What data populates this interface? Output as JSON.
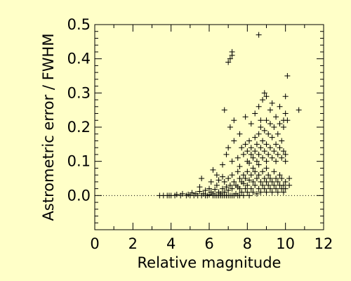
{
  "chart_data": {
    "type": "scatter",
    "title": "",
    "xlabel": "Relative magnitude",
    "ylabel": "Astrometric error / FWHM",
    "xlim": [
      0,
      12
    ],
    "ylim": [
      -0.1,
      0.5
    ],
    "xticks": [
      "0",
      "2",
      "4",
      "6",
      "8",
      "10",
      "12"
    ],
    "yticks": [
      "0.0",
      "0.1",
      "0.2",
      "0.3",
      "0.4",
      "0.5"
    ],
    "reference_line": {
      "y": 0.0,
      "style": "dotted"
    },
    "marker": "plus",
    "grid": false,
    "points": [
      [
        3.4,
        0.0
      ],
      [
        3.6,
        0.0
      ],
      [
        3.8,
        0.0
      ],
      [
        3.9,
        0.0
      ],
      [
        4.0,
        0.0
      ],
      [
        4.2,
        0.0
      ],
      [
        4.3,
        0.003
      ],
      [
        4.5,
        0.0
      ],
      [
        4.6,
        0.005
      ],
      [
        4.8,
        0.0
      ],
      [
        4.9,
        0.003
      ],
      [
        5.0,
        0.0
      ],
      [
        5.1,
        0.008
      ],
      [
        5.2,
        0.0
      ],
      [
        5.3,
        0.005
      ],
      [
        5.4,
        0.0
      ],
      [
        5.5,
        0.012
      ],
      [
        5.5,
        0.025
      ],
      [
        5.6,
        0.0
      ],
      [
        5.6,
        0.05
      ],
      [
        5.7,
        0.005
      ],
      [
        5.8,
        0.0
      ],
      [
        5.8,
        0.015
      ],
      [
        5.9,
        0.0
      ],
      [
        6.0,
        0.002
      ],
      [
        6.0,
        0.02
      ],
      [
        6.1,
        0.01
      ],
      [
        6.1,
        0.04
      ],
      [
        6.2,
        0.0
      ],
      [
        6.2,
        0.005
      ],
      [
        6.3,
        0.0
      ],
      [
        6.3,
        0.018
      ],
      [
        6.4,
        0.0
      ],
      [
        6.4,
        0.03
      ],
      [
        6.4,
        0.06
      ],
      [
        6.5,
        0.0
      ],
      [
        6.5,
        0.01
      ],
      [
        6.5,
        0.045
      ],
      [
        6.6,
        0.0
      ],
      [
        6.6,
        0.005
      ],
      [
        6.7,
        0.0
      ],
      [
        6.7,
        0.02
      ],
      [
        6.7,
        0.055
      ],
      [
        6.8,
        0.0
      ],
      [
        6.8,
        0.01
      ],
      [
        6.8,
        0.04
      ],
      [
        6.9,
        0.0
      ],
      [
        6.9,
        0.025
      ],
      [
        7.0,
        0.0
      ],
      [
        7.0,
        0.015
      ],
      [
        7.0,
        0.05
      ],
      [
        7.1,
        0.0
      ],
      [
        7.1,
        0.03
      ],
      [
        7.2,
        0.0
      ],
      [
        7.2,
        0.02
      ],
      [
        7.2,
        0.06
      ],
      [
        7.3,
        0.0
      ],
      [
        7.3,
        0.04
      ],
      [
        7.4,
        0.005
      ],
      [
        7.4,
        0.03
      ],
      [
        7.5,
        0.0
      ],
      [
        7.5,
        0.025
      ],
      [
        7.5,
        0.07
      ],
      [
        7.6,
        0.0
      ],
      [
        7.6,
        0.02
      ],
      [
        7.6,
        0.05
      ],
      [
        7.7,
        0.01
      ],
      [
        7.7,
        0.04
      ],
      [
        7.8,
        0.0
      ],
      [
        7.8,
        0.035
      ],
      [
        7.8,
        0.06
      ],
      [
        7.9,
        0.02
      ],
      [
        7.9,
        0.05
      ],
      [
        8.0,
        0.01
      ],
      [
        8.0,
        0.03
      ],
      [
        8.0,
        0.07
      ],
      [
        8.1,
        0.0
      ],
      [
        8.1,
        0.045
      ],
      [
        8.2,
        0.02
      ],
      [
        8.2,
        0.06
      ],
      [
        8.3,
        0.01
      ],
      [
        8.3,
        0.04
      ],
      [
        8.3,
        0.08
      ],
      [
        8.4,
        0.03
      ],
      [
        8.4,
        0.07
      ],
      [
        8.5,
        0.005
      ],
      [
        8.5,
        0.05
      ],
      [
        8.6,
        0.02
      ],
      [
        8.6,
        0.06
      ],
      [
        8.6,
        0.09
      ],
      [
        8.7,
        0.01
      ],
      [
        8.7,
        0.04
      ],
      [
        8.8,
        0.03
      ],
      [
        8.8,
        0.07
      ],
      [
        8.9,
        0.02
      ],
      [
        8.9,
        0.05
      ],
      [
        9.0,
        0.01
      ],
      [
        9.0,
        0.04
      ],
      [
        9.0,
        0.08
      ],
      [
        9.1,
        0.03
      ],
      [
        9.1,
        0.06
      ],
      [
        9.2,
        0.02
      ],
      [
        9.2,
        0.05
      ],
      [
        9.3,
        0.01
      ],
      [
        9.3,
        0.04
      ],
      [
        9.4,
        0.03
      ],
      [
        9.4,
        0.07
      ],
      [
        9.5,
        0.02
      ],
      [
        9.5,
        0.05
      ],
      [
        9.6,
        0.01
      ],
      [
        9.6,
        0.04
      ],
      [
        9.7,
        0.03
      ],
      [
        9.7,
        0.06
      ],
      [
        9.8,
        0.02
      ],
      [
        9.8,
        0.05
      ],
      [
        9.9,
        0.01
      ],
      [
        9.9,
        0.03
      ],
      [
        10.0,
        0.02
      ],
      [
        10.0,
        0.04
      ],
      [
        10.2,
        0.03
      ],
      [
        10.2,
        0.05
      ],
      [
        6.2,
        0.075
      ],
      [
        6.7,
        0.09
      ],
      [
        6.9,
        0.12
      ],
      [
        7.0,
        0.14
      ],
      [
        7.2,
        0.1
      ],
      [
        7.3,
        0.16
      ],
      [
        7.5,
        0.11
      ],
      [
        7.6,
        0.085
      ],
      [
        7.7,
        0.14
      ],
      [
        7.8,
        0.12
      ],
      [
        7.9,
        0.15
      ],
      [
        8.0,
        0.1
      ],
      [
        8.0,
        0.13
      ],
      [
        8.1,
        0.095
      ],
      [
        8.1,
        0.16
      ],
      [
        8.2,
        0.12
      ],
      [
        8.2,
        0.14
      ],
      [
        8.3,
        0.11
      ],
      [
        8.4,
        0.13
      ],
      [
        8.4,
        0.17
      ],
      [
        8.5,
        0.1
      ],
      [
        8.5,
        0.15
      ],
      [
        8.6,
        0.12
      ],
      [
        8.6,
        0.18
      ],
      [
        8.7,
        0.14
      ],
      [
        8.7,
        0.2
      ],
      [
        8.8,
        0.11
      ],
      [
        8.8,
        0.16
      ],
      [
        8.9,
        0.13
      ],
      [
        8.9,
        0.19
      ],
      [
        9.0,
        0.1
      ],
      [
        9.0,
        0.15
      ],
      [
        9.0,
        0.22
      ],
      [
        9.1,
        0.12
      ],
      [
        9.1,
        0.18
      ],
      [
        9.2,
        0.14
      ],
      [
        9.2,
        0.21
      ],
      [
        9.3,
        0.11
      ],
      [
        9.3,
        0.17
      ],
      [
        9.4,
        0.13
      ],
      [
        9.4,
        0.2
      ],
      [
        9.5,
        0.1
      ],
      [
        9.5,
        0.15
      ],
      [
        9.6,
        0.12
      ],
      [
        9.6,
        0.18
      ],
      [
        9.7,
        0.14
      ],
      [
        9.7,
        0.21
      ],
      [
        9.8,
        0.11
      ],
      [
        9.8,
        0.16
      ],
      [
        9.9,
        0.13
      ],
      [
        9.9,
        0.2
      ],
      [
        10.0,
        0.12
      ],
      [
        10.0,
        0.1
      ],
      [
        10.1,
        0.22
      ],
      [
        6.8,
        0.25
      ],
      [
        7.1,
        0.2
      ],
      [
        7.3,
        0.22
      ],
      [
        7.6,
        0.18
      ],
      [
        7.9,
        0.23
      ],
      [
        8.2,
        0.21
      ],
      [
        8.4,
        0.24
      ],
      [
        8.6,
        0.26
      ],
      [
        8.7,
        0.22
      ],
      [
        8.8,
        0.28
      ],
      [
        8.9,
        0.3
      ],
      [
        9.0,
        0.29
      ],
      [
        9.2,
        0.25
      ],
      [
        9.3,
        0.27
      ],
      [
        9.5,
        0.23
      ],
      [
        9.7,
        0.26
      ],
      [
        9.9,
        0.22
      ],
      [
        10.0,
        0.24
      ],
      [
        10.0,
        0.29
      ],
      [
        10.1,
        0.35
      ],
      [
        10.7,
        0.25
      ],
      [
        7.0,
        0.39
      ],
      [
        7.1,
        0.4
      ],
      [
        7.2,
        0.42
      ],
      [
        7.2,
        0.41
      ],
      [
        8.6,
        0.47
      ]
    ]
  }
}
